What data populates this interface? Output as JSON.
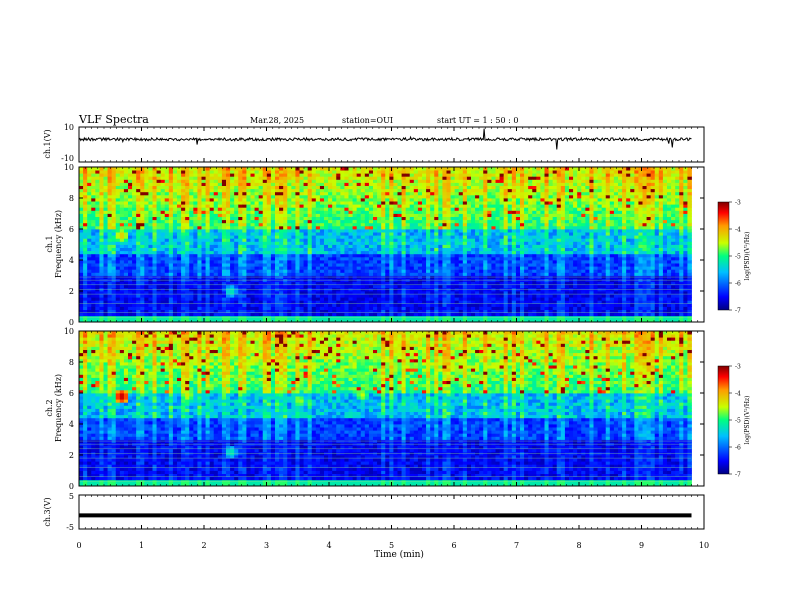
{
  "header": {
    "title": "VLF Spectra",
    "date": "Mar.28, 2025",
    "station": "station=OUI",
    "start": "start UT =  1 : 50 : 0"
  },
  "colors": {
    "colormap": [
      "#00007f",
      "#0000ff",
      "#00bfff",
      "#00ff80",
      "#c8ff00",
      "#ff9a00",
      "#ff0000",
      "#7f0000"
    ],
    "axis": "#000000"
  },
  "chart_data": [
    {
      "type": "line",
      "panel": "waveform-ch1",
      "ylabel": "ch.1(V)",
      "ylim": [
        -10,
        10
      ],
      "ytick_labels": [
        "10",
        "-10"
      ],
      "xlim": [
        0,
        10
      ],
      "series": [
        {
          "values_summary": "noise band centered near 3 V with spikes"
        }
      ]
    },
    {
      "type": "heatmap",
      "panel": "spectrogram-ch1",
      "ylabel": "ch.1\nFrequency (kHz)",
      "ylim": [
        0,
        10
      ],
      "ytick_labels": [
        "0",
        "2",
        "4",
        "6",
        "8",
        "10"
      ],
      "xlim": [
        0,
        10
      ],
      "x_data_end": 9.8,
      "colorbar": {
        "label": "log(PSD)(V²/Hz)",
        "range": [
          -7,
          -3
        ],
        "tick_labels": [
          "-3",
          "-4",
          "-5",
          "-6",
          "-7"
        ]
      }
    },
    {
      "type": "heatmap",
      "panel": "spectrogram-ch2",
      "ylabel": "ch.2\nFrequency (kHz)",
      "ylim": [
        0,
        10
      ],
      "ytick_labels": [
        "0",
        "2",
        "4",
        "6",
        "8",
        "10"
      ],
      "xlim": [
        0,
        10
      ],
      "x_data_end": 9.8,
      "colorbar": {
        "label": "log(PSD)(V²/Hz)",
        "range": [
          -7,
          -3
        ],
        "tick_labels": [
          "-3",
          "-4",
          "-5",
          "-6",
          "-7"
        ]
      }
    },
    {
      "type": "line",
      "panel": "waveform-ch3",
      "ylabel": "ch.3(V)",
      "ylim": [
        -5,
        5
      ],
      "ytick_labels": [
        "5",
        "-5"
      ],
      "xlim": [
        0,
        10
      ],
      "series": [
        {
          "values_summary": "flat thick line near -1 V"
        }
      ]
    }
  ],
  "xaxis": {
    "label": "Time (min)",
    "ticks": [
      0,
      1,
      2,
      3,
      4,
      5,
      6,
      7,
      8,
      9,
      10
    ]
  }
}
